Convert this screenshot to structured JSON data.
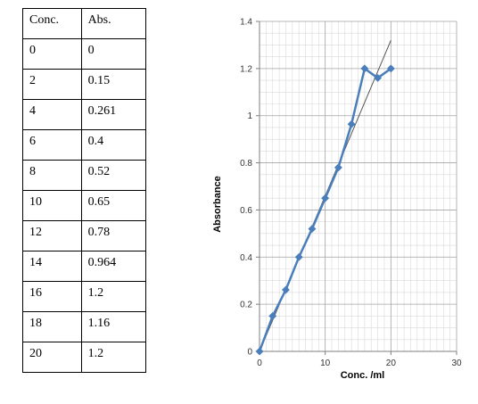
{
  "table": {
    "headers": [
      "Conc.",
      "Abs."
    ],
    "rows": [
      [
        "0",
        "0"
      ],
      [
        "2",
        "0.15"
      ],
      [
        "4",
        "0.261"
      ],
      [
        "6",
        "0.4"
      ],
      [
        "8",
        "0.52"
      ],
      [
        "10",
        "0.65"
      ],
      [
        "12",
        "0.78"
      ],
      [
        "14",
        "0.964"
      ],
      [
        "16",
        "1.2"
      ],
      [
        "18",
        "1.16"
      ],
      [
        "20",
        "1.2"
      ]
    ]
  },
  "chart_data": {
    "type": "line",
    "title": "",
    "xlabel": "Conc. /ml",
    "ylabel": "Absorbance",
    "xlim": [
      0,
      30
    ],
    "ylim": [
      0,
      1.4
    ],
    "xticks": [
      "0",
      "10",
      "20",
      "30"
    ],
    "yticks": [
      "0",
      "0.2",
      "0.4",
      "0.6",
      "0.8",
      "1",
      "1.2",
      "1.4"
    ],
    "grid": true,
    "series": [
      {
        "x": [
          0,
          2,
          4,
          6,
          8,
          10,
          12,
          14,
          16,
          18,
          20
        ],
        "y": [
          0,
          0.15,
          0.261,
          0.4,
          0.52,
          0.65,
          0.78,
          0.964,
          1.2,
          1.16,
          1.2
        ],
        "color": "#4a7ebb"
      }
    ],
    "trendline": {
      "x": [
        0,
        20
      ],
      "y": [
        0,
        1.32
      ],
      "color": "#555555"
    }
  }
}
